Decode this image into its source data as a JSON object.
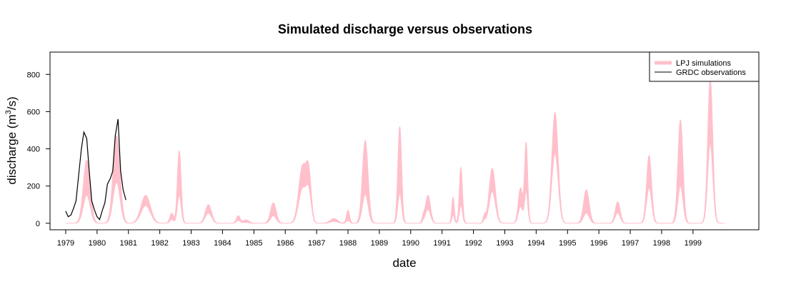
{
  "chart_data": {
    "type": "line",
    "title": "Simulated discharge versus observations",
    "xlabel": "date",
    "ylabel_main": "discharge (m",
    "ylabel_sup": "3",
    "ylabel_tail": "/s)",
    "xlim": [
      1978.5,
      2001.1
    ],
    "ylim": [
      -35,
      920
    ],
    "x_ticks": [
      1979,
      1980,
      1981,
      1982,
      1983,
      1984,
      1985,
      1986,
      1987,
      1988,
      1989,
      1990,
      1991,
      1992,
      1993,
      1994,
      1995,
      1996,
      1997,
      1998,
      1999
    ],
    "y_ticks": [
      0,
      200,
      400,
      600,
      800
    ],
    "legend_position": "top-right",
    "colors": {
      "simulation": "#ffc0cb",
      "observation": "#000000",
      "axes": "#000000"
    },
    "series": [
      {
        "name": "LPJ simulations",
        "kind": "band",
        "peaks": [
          {
            "x": 1979.67,
            "upper": 340,
            "lower": 150,
            "w": 0.11
          },
          {
            "x": 1980.62,
            "upper": 470,
            "lower": 220,
            "w": 0.11
          },
          {
            "x": 1981.55,
            "upper": 150,
            "lower": 95,
            "w": 0.15
          },
          {
            "x": 1982.38,
            "upper": 55,
            "lower": 20,
            "w": 0.06
          },
          {
            "x": 1982.62,
            "upper": 390,
            "lower": 150,
            "w": 0.06
          },
          {
            "x": 1983.55,
            "upper": 100,
            "lower": 55,
            "w": 0.1
          },
          {
            "x": 1984.5,
            "upper": 40,
            "lower": 15,
            "w": 0.06
          },
          {
            "x": 1984.75,
            "upper": 18,
            "lower": 5,
            "w": 0.1
          },
          {
            "x": 1985.62,
            "upper": 110,
            "lower": 40,
            "w": 0.09
          },
          {
            "x": 1986.55,
            "upper": 305,
            "lower": 185,
            "w": 0.12
          },
          {
            "x": 1986.75,
            "upper": 240,
            "lower": 150,
            "w": 0.08
          },
          {
            "x": 1987.55,
            "upper": 25,
            "lower": 10,
            "w": 0.12
          },
          {
            "x": 1988.0,
            "upper": 70,
            "lower": 15,
            "w": 0.05
          },
          {
            "x": 1988.55,
            "upper": 445,
            "lower": 155,
            "w": 0.09
          },
          {
            "x": 1989.65,
            "upper": 520,
            "lower": 160,
            "w": 0.06
          },
          {
            "x": 1990.4,
            "upper": 28,
            "lower": 8,
            "w": 0.04
          },
          {
            "x": 1990.55,
            "upper": 150,
            "lower": 75,
            "w": 0.08
          },
          {
            "x": 1991.35,
            "upper": 140,
            "lower": 45,
            "w": 0.04
          },
          {
            "x": 1991.6,
            "upper": 300,
            "lower": 95,
            "w": 0.05
          },
          {
            "x": 1992.35,
            "upper": 40,
            "lower": 15,
            "w": 0.04
          },
          {
            "x": 1992.6,
            "upper": 295,
            "lower": 170,
            "w": 0.1
          },
          {
            "x": 1993.5,
            "upper": 190,
            "lower": 90,
            "w": 0.07
          },
          {
            "x": 1993.68,
            "upper": 430,
            "lower": 170,
            "w": 0.05
          },
          {
            "x": 1994.6,
            "upper": 595,
            "lower": 375,
            "w": 0.1
          },
          {
            "x": 1995.6,
            "upper": 180,
            "lower": 55,
            "w": 0.09
          },
          {
            "x": 1996.6,
            "upper": 115,
            "lower": 55,
            "w": 0.08
          },
          {
            "x": 1997.6,
            "upper": 365,
            "lower": 190,
            "w": 0.08
          },
          {
            "x": 1998.6,
            "upper": 555,
            "lower": 200,
            "w": 0.08
          },
          {
            "x": 1999.55,
            "upper": 780,
            "lower": 430,
            "w": 0.08
          }
        ]
      },
      {
        "name": "GRDC observations",
        "kind": "line",
        "x": [
          1979.0,
          1979.08,
          1979.17,
          1979.25,
          1979.33,
          1979.42,
          1979.5,
          1979.58,
          1979.67,
          1979.75,
          1979.83,
          1979.92,
          1980.0,
          1980.08,
          1980.17,
          1980.25,
          1980.33,
          1980.42,
          1980.5,
          1980.58,
          1980.67,
          1980.75,
          1980.83,
          1980.92
        ],
        "y": [
          65,
          35,
          45,
          80,
          120,
          270,
          400,
          490,
          455,
          280,
          120,
          70,
          35,
          20,
          70,
          110,
          210,
          240,
          280,
          470,
          560,
          280,
          180,
          125
        ]
      }
    ]
  }
}
